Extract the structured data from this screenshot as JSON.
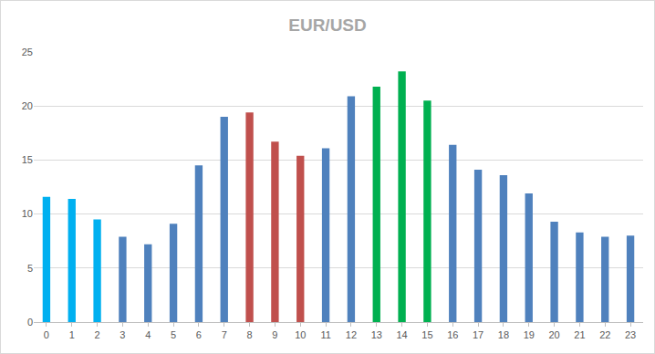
{
  "chart_data": {
    "type": "bar",
    "title": "EUR/USD",
    "categories": [
      "0",
      "1",
      "2",
      "3",
      "4",
      "5",
      "6",
      "7",
      "8",
      "9",
      "10",
      "11",
      "12",
      "13",
      "14",
      "15",
      "16",
      "17",
      "18",
      "19",
      "20",
      "21",
      "22",
      "23"
    ],
    "values": [
      11.6,
      11.4,
      9.5,
      7.9,
      7.2,
      9.1,
      14.5,
      19.0,
      19.4,
      16.7,
      15.4,
      16.1,
      20.9,
      21.8,
      23.2,
      20.5,
      16.4,
      14.1,
      13.6,
      11.9,
      9.3,
      8.3,
      7.9,
      8.0
    ],
    "colors": [
      "#00b0f0",
      "#00b0f0",
      "#00b0f0",
      "#4f81bd",
      "#4f81bd",
      "#4f81bd",
      "#4f81bd",
      "#4f81bd",
      "#c0504d",
      "#c0504d",
      "#c0504d",
      "#4f81bd",
      "#4f81bd",
      "#00b050",
      "#00b050",
      "#00b050",
      "#4f81bd",
      "#4f81bd",
      "#4f81bd",
      "#4f81bd",
      "#4f81bd",
      "#4f81bd",
      "#4f81bd",
      "#4f81bd"
    ],
    "ylim": [
      0,
      25
    ],
    "yticks": [
      0,
      5,
      10,
      15,
      20,
      25
    ],
    "grid": true
  }
}
